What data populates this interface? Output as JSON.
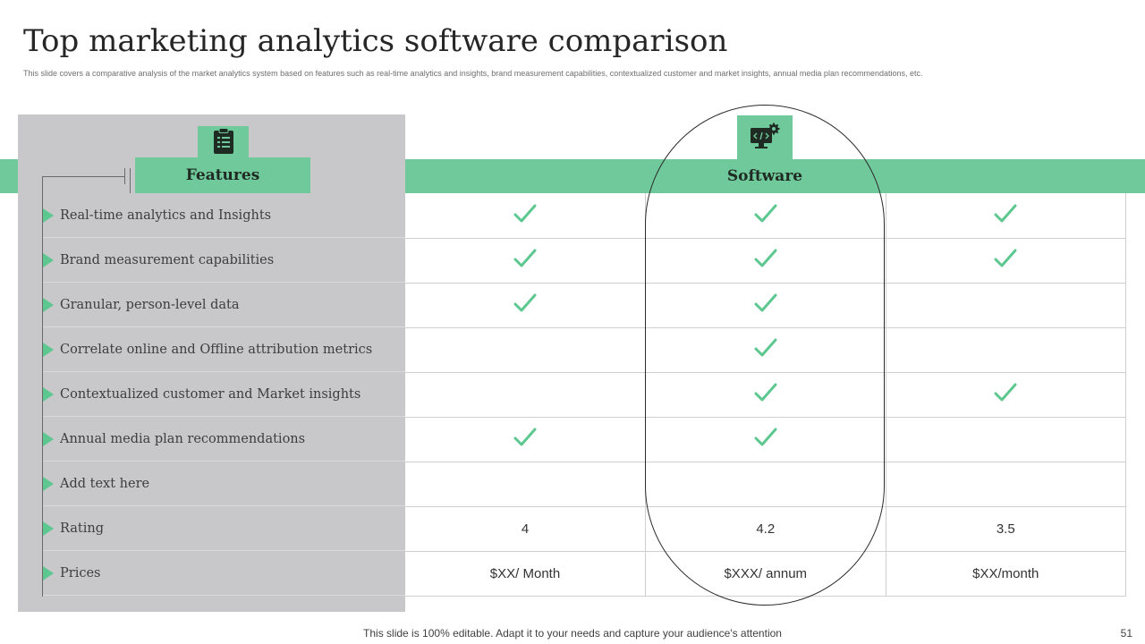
{
  "title": "Top marketing analytics software comparison",
  "subtitle": "This slide covers a comparative analysis of the market analytics system based on features such as real-time analytics and insights, brand measurement capabilities, contextualized customer and market insights, annual media plan recommendations, etc.",
  "features_header": "Features",
  "software_header": "Software",
  "features": [
    "Real-time analytics and Insights",
    "Brand measurement capabilities",
    "Granular, person-level data",
    "Correlate online and Offline attribution metrics",
    "Contextualized customer  and Market insights",
    "Annual media plan recommendations",
    "Add text here",
    "Rating",
    "Prices"
  ],
  "checks": [
    [
      true,
      true,
      true
    ],
    [
      true,
      true,
      true
    ],
    [
      true,
      true,
      false
    ],
    [
      false,
      true,
      false
    ],
    [
      false,
      true,
      true
    ],
    [
      true,
      true,
      false
    ],
    [
      false,
      false,
      false
    ]
  ],
  "ratings": [
    "4",
    "4.2",
    "3.5"
  ],
  "prices": [
    "$XX/ Month",
    "$XXX/ annum",
    "$XX/month"
  ],
  "footer": "This slide is 100% editable. Adapt it to your needs and capture your audience's attention",
  "page_number": "51",
  "colors": {
    "accent": "#6fc99b",
    "panel": "#c8c8ca",
    "check": "#5cc78f"
  },
  "icons": {
    "features": "clipboard-checklist-icon",
    "software": "monitor-code-gear-icon"
  }
}
